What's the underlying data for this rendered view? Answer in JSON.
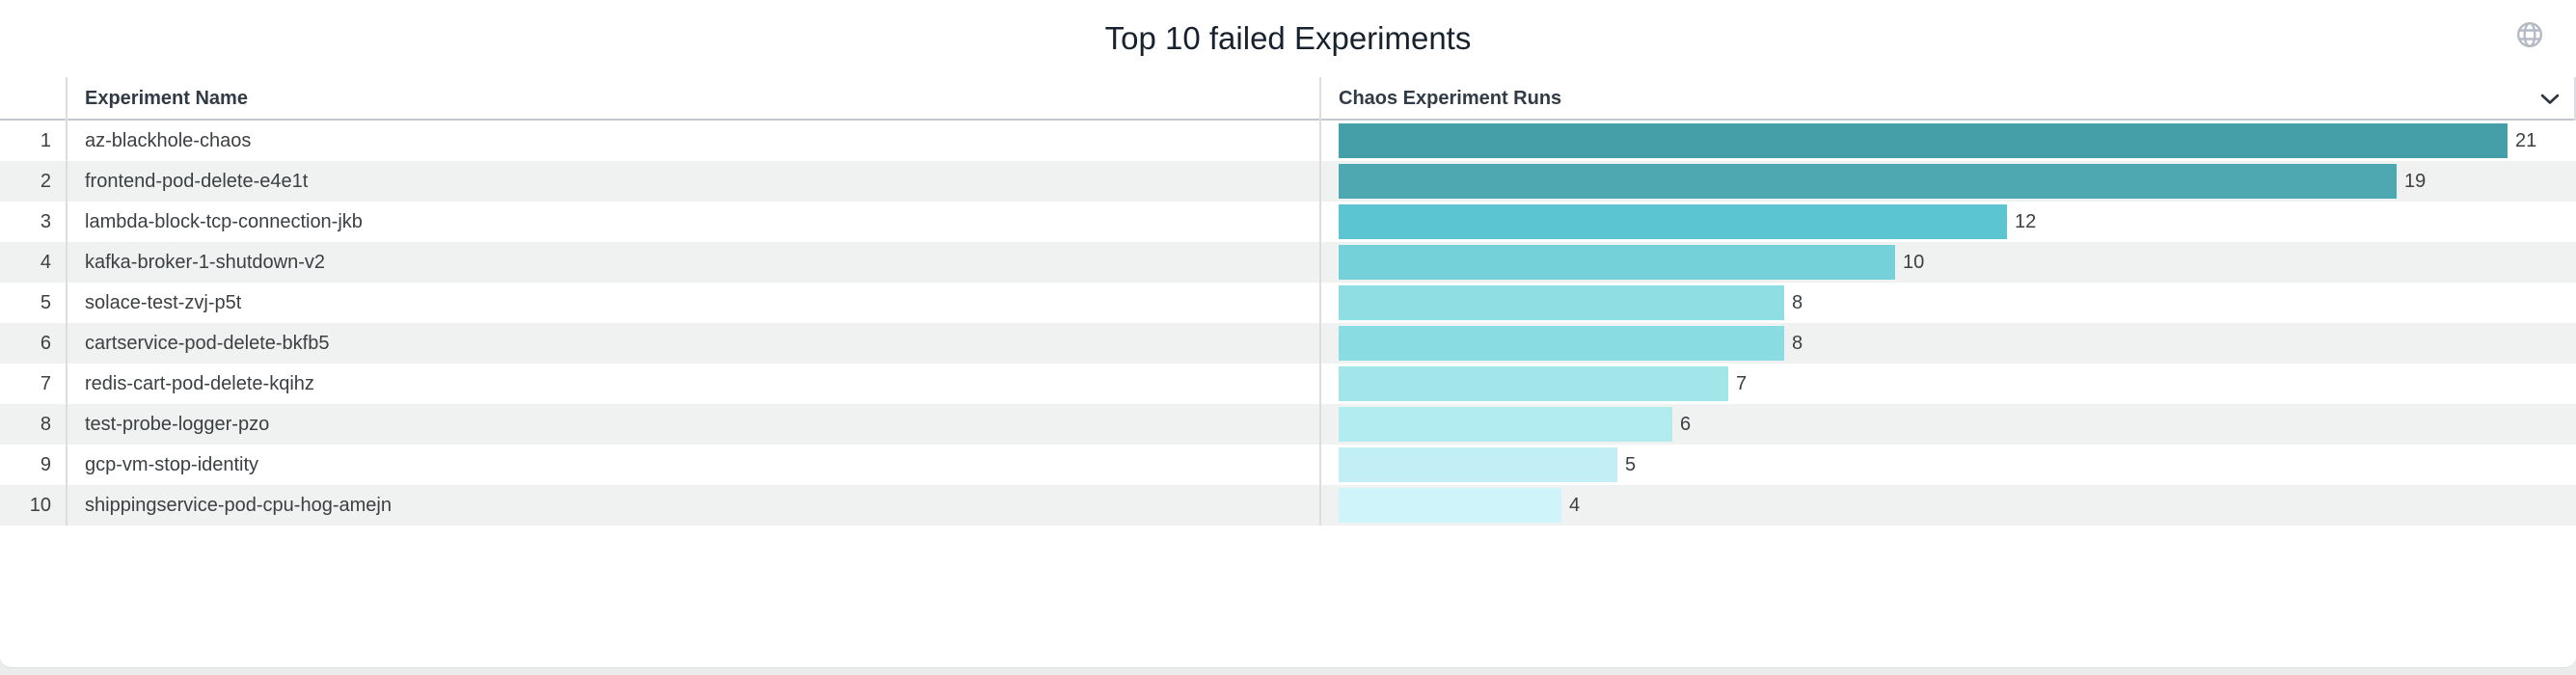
{
  "title": "Top 10 failed Experiments",
  "icons": {
    "globe": "globe-icon",
    "sort_chevron": "chevron-down-icon"
  },
  "table": {
    "header": {
      "rank": "",
      "name": "Experiment Name",
      "runs": "Chaos Experiment Runs"
    },
    "rows": [
      {
        "rank": "1",
        "name": "az-blackhole-chaos",
        "value": 21,
        "color": "#459fa9"
      },
      {
        "rank": "2",
        "name": "frontend-pod-delete-e4e1t",
        "value": 19,
        "color": "#4da8b1"
      },
      {
        "rank": "3",
        "name": "lambda-block-tcp-connection-jkb",
        "value": 12,
        "color": "#5bc5d1"
      },
      {
        "rank": "4",
        "name": "kafka-broker-1-shutdown-v2",
        "value": 10,
        "color": "#74d1da"
      },
      {
        "rank": "5",
        "name": "solace-test-zvj-p5t",
        "value": 8,
        "color": "#8edee4"
      },
      {
        "rank": "6",
        "name": "cartservice-pod-delete-bkfb5",
        "value": 8,
        "color": "#88dce2"
      },
      {
        "rank": "7",
        "name": "redis-cart-pod-delete-kqihz",
        "value": 7,
        "color": "#a2e6ea"
      },
      {
        "rank": "8",
        "name": "test-probe-logger-pzo",
        "value": 6,
        "color": "#b3ecf0"
      },
      {
        "rank": "9",
        "name": "gcp-vm-stop-identity",
        "value": 5,
        "color": "#c1eff5"
      },
      {
        "rank": "10",
        "name": "shippingservice-pod-cpu-hog-amejn",
        "value": 4,
        "color": "#cff5fa"
      }
    ]
  },
  "chart_data": {
    "type": "bar",
    "orientation": "horizontal",
    "title": "Top 10 failed Experiments",
    "series_label": "Chaos Experiment Runs",
    "categories": [
      "az-blackhole-chaos",
      "frontend-pod-delete-e4e1t",
      "lambda-block-tcp-connection-jkb",
      "kafka-broker-1-shutdown-v2",
      "solace-test-zvj-p5t",
      "cartservice-pod-delete-bkfb5",
      "redis-cart-pod-delete-kqihz",
      "test-probe-logger-pzo",
      "gcp-vm-stop-identity",
      "shippingservice-pod-cpu-hog-amejn"
    ],
    "values": [
      21,
      19,
      12,
      10,
      8,
      8,
      7,
      6,
      5,
      4
    ],
    "value_labels_shown": true,
    "xlim": [
      0,
      21
    ],
    "legend": "none",
    "grid": false,
    "bar_colors": [
      "#459fa9",
      "#4da8b1",
      "#5bc5d1",
      "#74d1da",
      "#8edee4",
      "#88dce2",
      "#a2e6ea",
      "#b3ecf0",
      "#c1eff5",
      "#cff5fa"
    ]
  }
}
